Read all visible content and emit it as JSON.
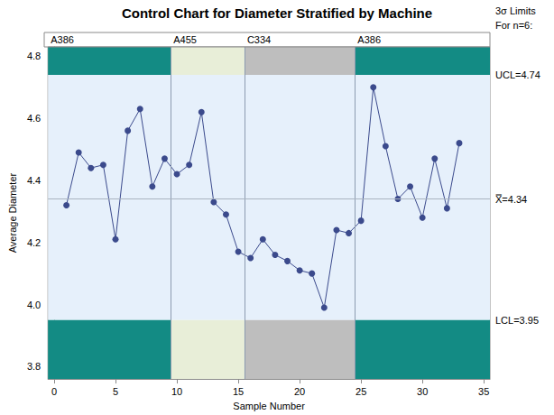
{
  "chart_data": {
    "type": "line",
    "title": "Control Chart for Diameter Stratified by Machine",
    "x_label": "Sample Number",
    "y_label": "Average Diameter",
    "x": [
      1,
      2,
      3,
      4,
      5,
      6,
      7,
      8,
      9,
      10,
      11,
      12,
      13,
      14,
      15,
      16,
      17,
      18,
      19,
      20,
      21,
      22,
      23,
      24,
      25,
      26,
      27,
      28,
      29,
      30,
      31,
      32,
      33
    ],
    "values": [
      4.32,
      4.49,
      4.44,
      4.45,
      4.21,
      4.56,
      4.63,
      4.38,
      4.47,
      4.42,
      4.45,
      4.62,
      4.33,
      4.29,
      4.17,
      4.15,
      4.21,
      4.16,
      4.14,
      4.11,
      4.1,
      3.99,
      4.24,
      4.23,
      4.27,
      4.7,
      4.51,
      4.34,
      4.38,
      4.28,
      4.47,
      4.31,
      4.52
    ],
    "color": "#3b4a8c",
    "marker": "circle",
    "grid": false,
    "xlim": [
      -0.5,
      35.5
    ],
    "xticks": [
      0,
      5,
      10,
      15,
      20,
      25,
      30,
      35
    ],
    "ylim": [
      3.76,
      4.83
    ],
    "yticks": [
      3.8,
      {
        "value": 4,
        "label": "4.0"
      },
      4.2,
      4.4,
      4.6,
      4.8
    ],
    "limits_title": "3σ Limits",
    "limits_subtitle": "For n=6:",
    "control_limits": {
      "ucl": {
        "value": 4.74,
        "label": "UCL=4.74"
      },
      "center": {
        "value": 4.34,
        "label": "X̿=4.34"
      },
      "lcl": {
        "value": 3.95,
        "label": "LCL=3.95"
      }
    },
    "phases": [
      {
        "label": "A386",
        "from": -0.5,
        "to": 9.5,
        "color": "#138b84"
      },
      {
        "label": "A455",
        "from": 9.5,
        "to": 15.5,
        "color": "#e8eed8"
      },
      {
        "label": "C334",
        "from": 15.5,
        "to": 24.5,
        "color": "#bebebe"
      },
      {
        "label": "A386",
        "from": 24.5,
        "to": 35.5,
        "color": "#138b84"
      }
    ]
  }
}
